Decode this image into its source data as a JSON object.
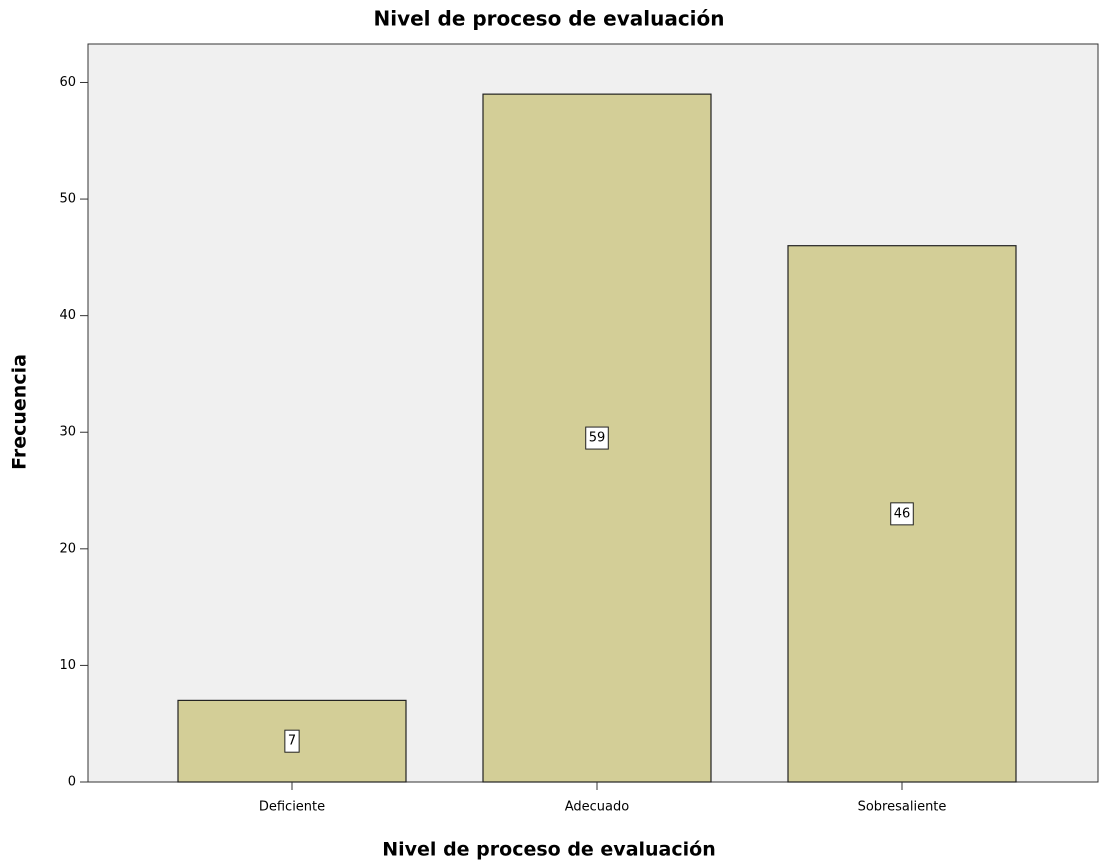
{
  "chart_data": {
    "type": "bar",
    "title": "Nivel de proceso de evaluación",
    "xlabel": "Nivel de proceso de evaluación",
    "ylabel": "Frecuencia",
    "categories": [
      "Deficiente",
      "Adecuado",
      "Sobresaliente"
    ],
    "values": [
      7,
      59,
      46
    ],
    "color": "#d3ce97",
    "ylim": [
      0,
      63.3
    ],
    "yticks": [
      0,
      10,
      20,
      30,
      40,
      50,
      60
    ],
    "grid": false
  }
}
